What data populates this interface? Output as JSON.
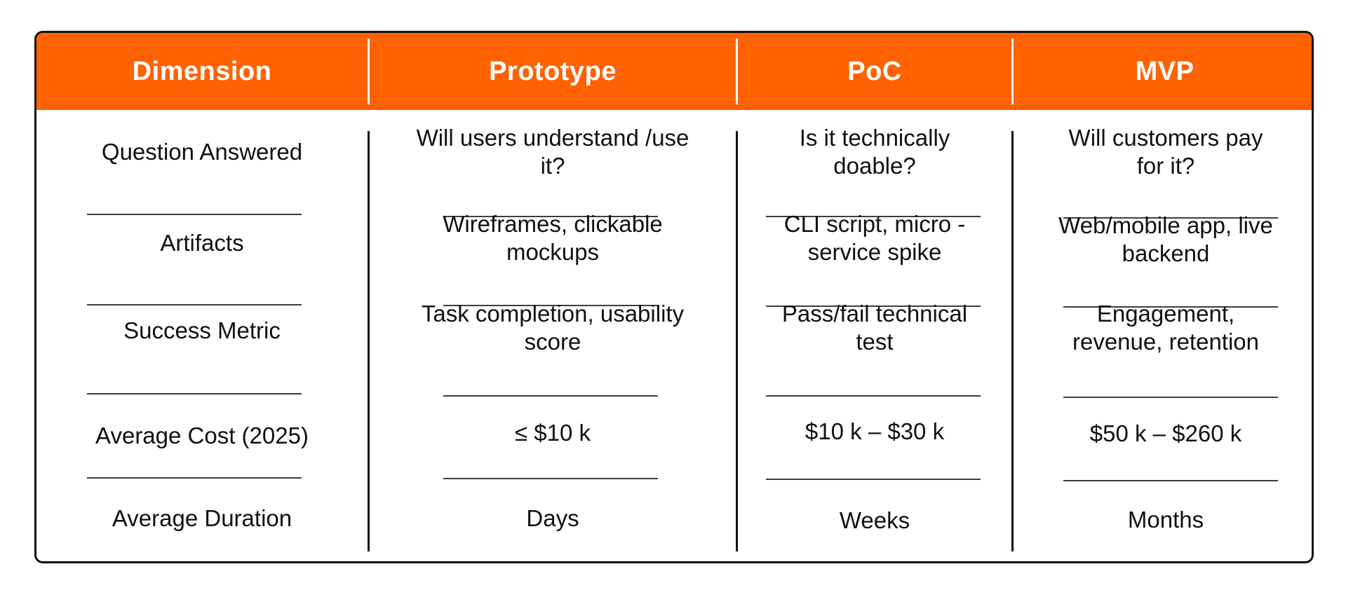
{
  "columns": [
    "Dimension",
    "Prototype",
    "PoC",
    "MVP"
  ],
  "rows": [
    {
      "dimension": "Question Answered",
      "prototype": "Will users understand /use it?",
      "poc": "Is it technically doable?",
      "mvp": "Will customers pay for it?"
    },
    {
      "dimension": "Artifacts",
      "prototype": "Wireframes, clickable mockups",
      "poc": "CLI script, micro - service spike",
      "mvp": "Web/mobile app, live backend"
    },
    {
      "dimension": "Success Metric",
      "prototype": "Task completion, usability score",
      "poc": "Pass/fail technical test",
      "mvp": "Engagement, revenue, retention"
    },
    {
      "dimension": "Average Cost (2025)",
      "prototype": "≤ $10 k",
      "poc": "$10 k – $30 k",
      "mvp": "$50 k – $260 k"
    },
    {
      "dimension": "Average Duration",
      "prototype": "Days",
      "poc": "Weeks",
      "mvp": "Months"
    }
  ],
  "colors": {
    "header_bg": "#ff6200",
    "header_text": "#ffffff",
    "border": "#111111",
    "rule": "#3a3f44"
  }
}
